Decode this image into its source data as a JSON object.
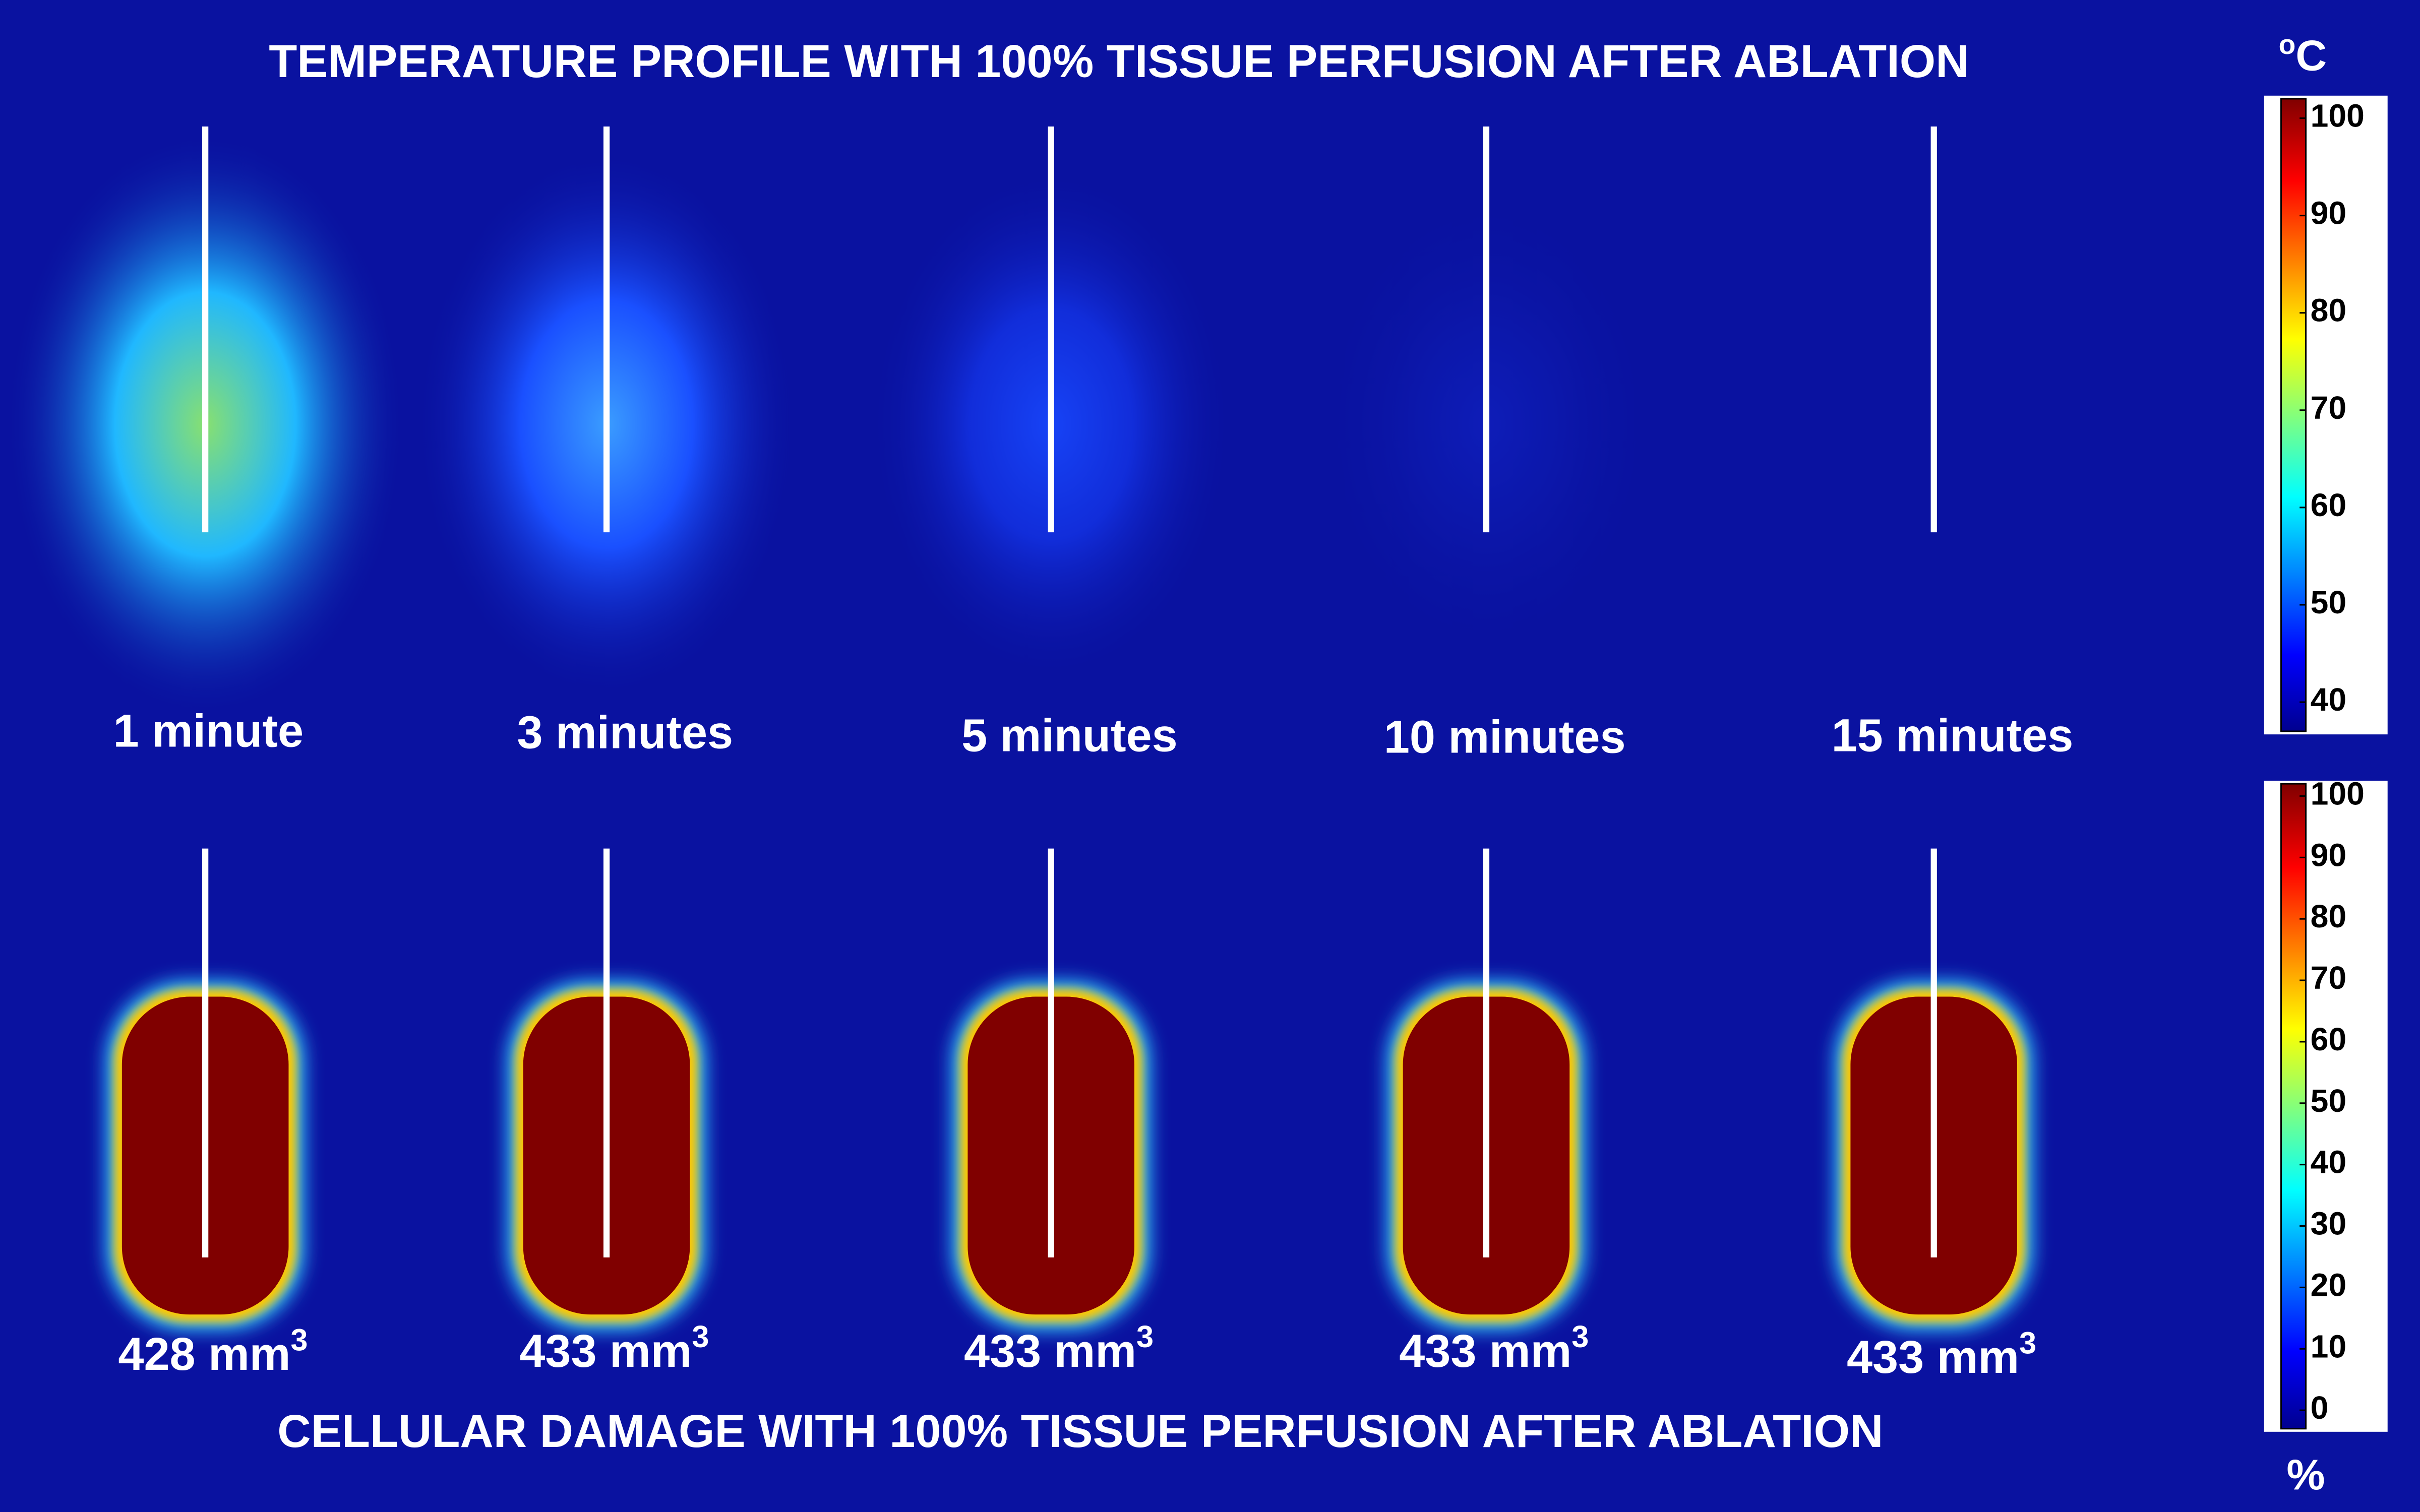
{
  "top_title": "TEMPERATURE PROFILE WITH 100% TISSUE PERFUSION AFTER ABLATION",
  "bottom_title": "CELLULAR DAMAGE WITH 100% TISSUE PERFUSION AFTER ABLATION",
  "time_labels": [
    "1 minute",
    "3 minutes",
    "5 minutes",
    "10 minutes",
    "15 minutes"
  ],
  "volume_labels": [
    {
      "text": "428 mm",
      "sup": "3"
    },
    {
      "text": "433 mm",
      "sup": "3"
    },
    {
      "text": "433 mm",
      "sup": "3"
    },
    {
      "text": "433 mm",
      "sup": "3"
    },
    {
      "text": "433 mm",
      "sup": "3"
    }
  ],
  "temperature_colorbar": {
    "unit_sup": "o",
    "unit": "C",
    "lim": [
      37,
      102
    ],
    "ticks": [
      40,
      50,
      60,
      70,
      80,
      90,
      100
    ]
  },
  "damage_colorbar": {
    "unit": "%",
    "lim": [
      -3,
      102
    ],
    "ticks": [
      0,
      10,
      20,
      30,
      40,
      50,
      60,
      70,
      80,
      90,
      100
    ]
  }
}
